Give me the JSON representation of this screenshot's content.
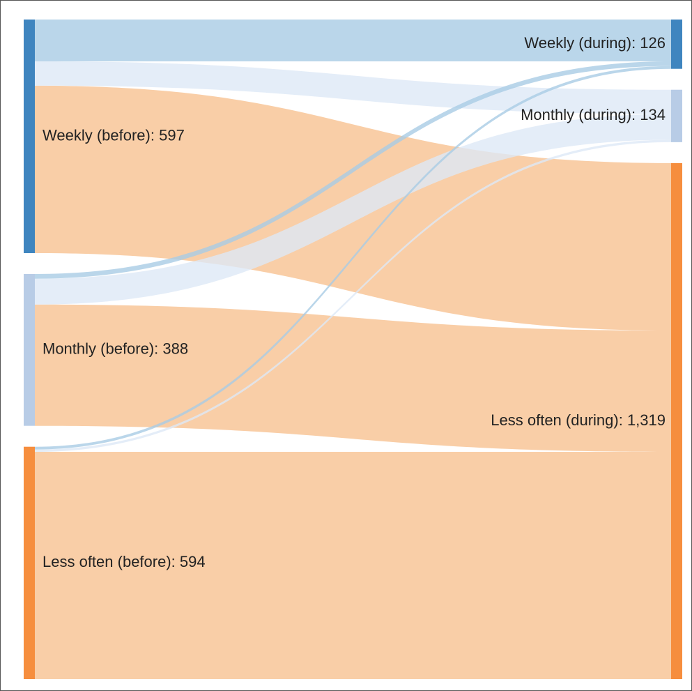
{
  "diagram": {
    "type": "sankey",
    "colors": {
      "weekly": "#3f85bf",
      "monthly": "#b8cce6",
      "less_often": "#f68e3e",
      "link_blue_dark": "#a9cce5",
      "link_blue_light": "#dde9f6",
      "link_orange": "#f9cba2"
    },
    "nodes": [
      {
        "id": "wb",
        "label": "Weekly (before): 597",
        "value": 597,
        "column": "before",
        "color": "weekly"
      },
      {
        "id": "mb",
        "label": "Monthly (before): 388",
        "value": 388,
        "column": "before",
        "color": "monthly"
      },
      {
        "id": "lb",
        "label": "Less often (before): 594",
        "value": 594,
        "column": "before",
        "color": "less_often"
      },
      {
        "id": "wd",
        "label": "Weekly (during): 126",
        "value": 126,
        "column": "during",
        "color": "weekly"
      },
      {
        "id": "md",
        "label": "Monthly (during): 134",
        "value": 134,
        "column": "during",
        "color": "monthly"
      },
      {
        "id": "ld",
        "label": "Less often (during): 1,319",
        "value": 1319,
        "column": "during",
        "color": "less_often"
      }
    ],
    "links": [
      {
        "source": "wb",
        "target": "wd",
        "value": 107,
        "color": "link_blue_dark"
      },
      {
        "source": "wb",
        "target": "md",
        "value": 62,
        "color": "link_blue_light"
      },
      {
        "source": "wb",
        "target": "ld",
        "value": 428,
        "color": "link_orange"
      },
      {
        "source": "mb",
        "target": "wd",
        "value": 12,
        "color": "link_blue_dark"
      },
      {
        "source": "mb",
        "target": "md",
        "value": 66,
        "color": "link_blue_light"
      },
      {
        "source": "mb",
        "target": "ld",
        "value": 310,
        "color": "link_orange"
      },
      {
        "source": "lb",
        "target": "wd",
        "value": 7,
        "color": "link_blue_dark"
      },
      {
        "source": "lb",
        "target": "md",
        "value": 6,
        "color": "link_blue_light"
      },
      {
        "source": "lb",
        "target": "ld",
        "value": 581,
        "color": "link_orange"
      }
    ]
  }
}
